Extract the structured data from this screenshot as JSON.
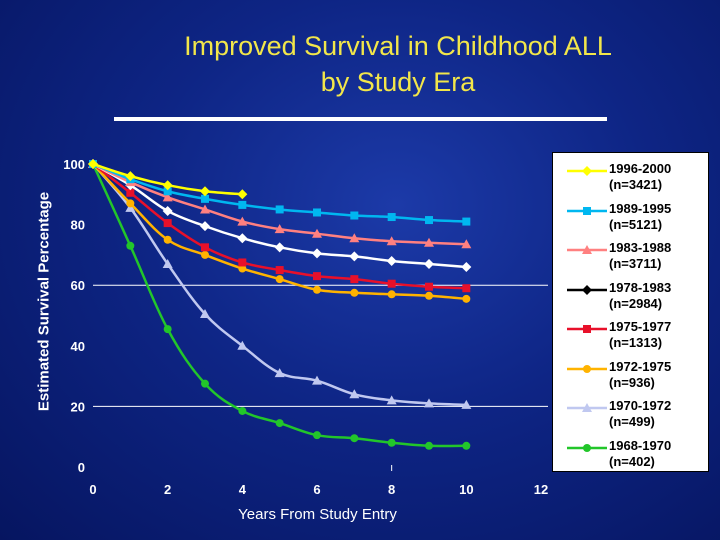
{
  "chart_data": {
    "type": "line",
    "title_line1": "Improved Survival in Childhood ALL",
    "title_line2": "by Study Era",
    "ylabel": "Estimated Survival Percentage",
    "xlabel": "Years From Study Entry",
    "xlim": [
      0,
      12
    ],
    "ylim": [
      0,
      100
    ],
    "x_ticks": [
      0,
      2,
      4,
      6,
      8,
      10,
      12
    ],
    "y_ticks": [
      0,
      20,
      40,
      60,
      80,
      100
    ],
    "gridlines_y": [
      20,
      60
    ],
    "legend_position": "right",
    "series": [
      {
        "name": "1996-2000",
        "n": "(n=3421)",
        "color": "#ffff00",
        "marker": "diamond",
        "x": [
          0,
          1,
          2,
          3,
          4
        ],
        "y": [
          100,
          96,
          93,
          91,
          90
        ]
      },
      {
        "name": "1989-1995",
        "n": "(n=5121)",
        "color": "#00b7f0",
        "marker": "square",
        "x": [
          0,
          1,
          2,
          3,
          4,
          5,
          6,
          7,
          8,
          9,
          10
        ],
        "y": [
          100,
          95,
          91,
          88.5,
          86.5,
          85,
          84,
          83,
          82.5,
          81.5,
          81
        ]
      },
      {
        "name": "1983-1988",
        "n": "(n=3711)",
        "color": "#ff8080",
        "marker": "triangle",
        "x": [
          0,
          1,
          2,
          3,
          4,
          5,
          6,
          7,
          8,
          9,
          10
        ],
        "y": [
          100,
          94,
          89,
          85,
          81,
          78.5,
          77,
          75.5,
          74.5,
          74,
          73.5
        ]
      },
      {
        "name": "1978-1983",
        "n": "(n=2984)",
        "color": "#ffffff",
        "marker": "diamond",
        "x": [
          0,
          1,
          2,
          3,
          4,
          5,
          6,
          7,
          8,
          9,
          10
        ],
        "y": [
          100,
          93,
          84.5,
          79.5,
          75.5,
          72.5,
          70.5,
          69.5,
          68,
          67,
          66
        ]
      },
      {
        "name": "1975-1977",
        "n": "(n=1313)",
        "color": "#e8102a",
        "marker": "square",
        "x": [
          0,
          1,
          2,
          3,
          4,
          5,
          6,
          7,
          8,
          9,
          10
        ],
        "y": [
          100,
          90.5,
          80.5,
          72.5,
          67.5,
          65,
          63,
          62,
          60.5,
          59.5,
          59
        ]
      },
      {
        "name": "1972-1975",
        "n": "(n=936)",
        "color": "#ffb300",
        "marker": "circle",
        "x": [
          0,
          1,
          2,
          3,
          4,
          5,
          6,
          7,
          8,
          9,
          10
        ],
        "y": [
          100,
          87,
          75,
          70,
          65.5,
          62,
          58.5,
          57.5,
          57,
          56.5,
          55.5
        ]
      },
      {
        "name": "1970-1972",
        "n": "(n=499)",
        "color": "#c0c8f0",
        "marker": "triangle",
        "x": [
          0,
          1,
          2,
          3,
          4,
          5,
          6,
          7,
          8,
          9,
          10
        ],
        "y": [
          100,
          85.5,
          67,
          50.5,
          40,
          31,
          28.5,
          24,
          22,
          21,
          20.5
        ]
      },
      {
        "name": "1968-1970",
        "n": "(n=402)",
        "color": "#22c62a",
        "marker": "circle",
        "x": [
          0,
          1,
          2,
          3,
          4,
          5,
          6,
          7,
          8,
          9,
          10
        ],
        "y": [
          100,
          73,
          45.5,
          27.5,
          18.5,
          14.5,
          10.5,
          9.5,
          8,
          7,
          7
        ]
      }
    ]
  }
}
